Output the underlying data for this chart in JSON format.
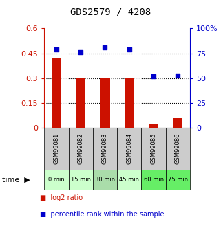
{
  "title": "GDS2579 / 4208",
  "samples": [
    "GSM99081",
    "GSM99082",
    "GSM99083",
    "GSM99084",
    "GSM99085",
    "GSM99086"
  ],
  "time_labels": [
    "0 min",
    "15 min",
    "30 min",
    "45 min",
    "60 min",
    "75 min"
  ],
  "time_bg_colors": [
    "#ccffcc",
    "#ccffcc",
    "#aaddaa",
    "#ccffcc",
    "#66ee66",
    "#66ee66"
  ],
  "log2_ratio": [
    0.42,
    0.3,
    0.305,
    0.305,
    0.02,
    0.06
  ],
  "percentile_rank": [
    79,
    76,
    81,
    79,
    52,
    53
  ],
  "left_ylim": [
    0,
    0.6
  ],
  "right_ylim": [
    0,
    100
  ],
  "left_yticks": [
    0,
    0.15,
    0.3,
    0.45,
    0.6
  ],
  "right_yticks": [
    0,
    25,
    50,
    75,
    100
  ],
  "left_ytick_labels": [
    "0",
    "0.15",
    "0.3",
    "0.45",
    "0.6"
  ],
  "right_ytick_labels": [
    "0",
    "25",
    "50",
    "75",
    "100%"
  ],
  "bar_color": "#cc1100",
  "scatter_color": "#0000cc",
  "sample_bg_color": "#cccccc",
  "legend_bar_label": "log2 ratio",
  "legend_scatter_label": "percentile rank within the sample"
}
